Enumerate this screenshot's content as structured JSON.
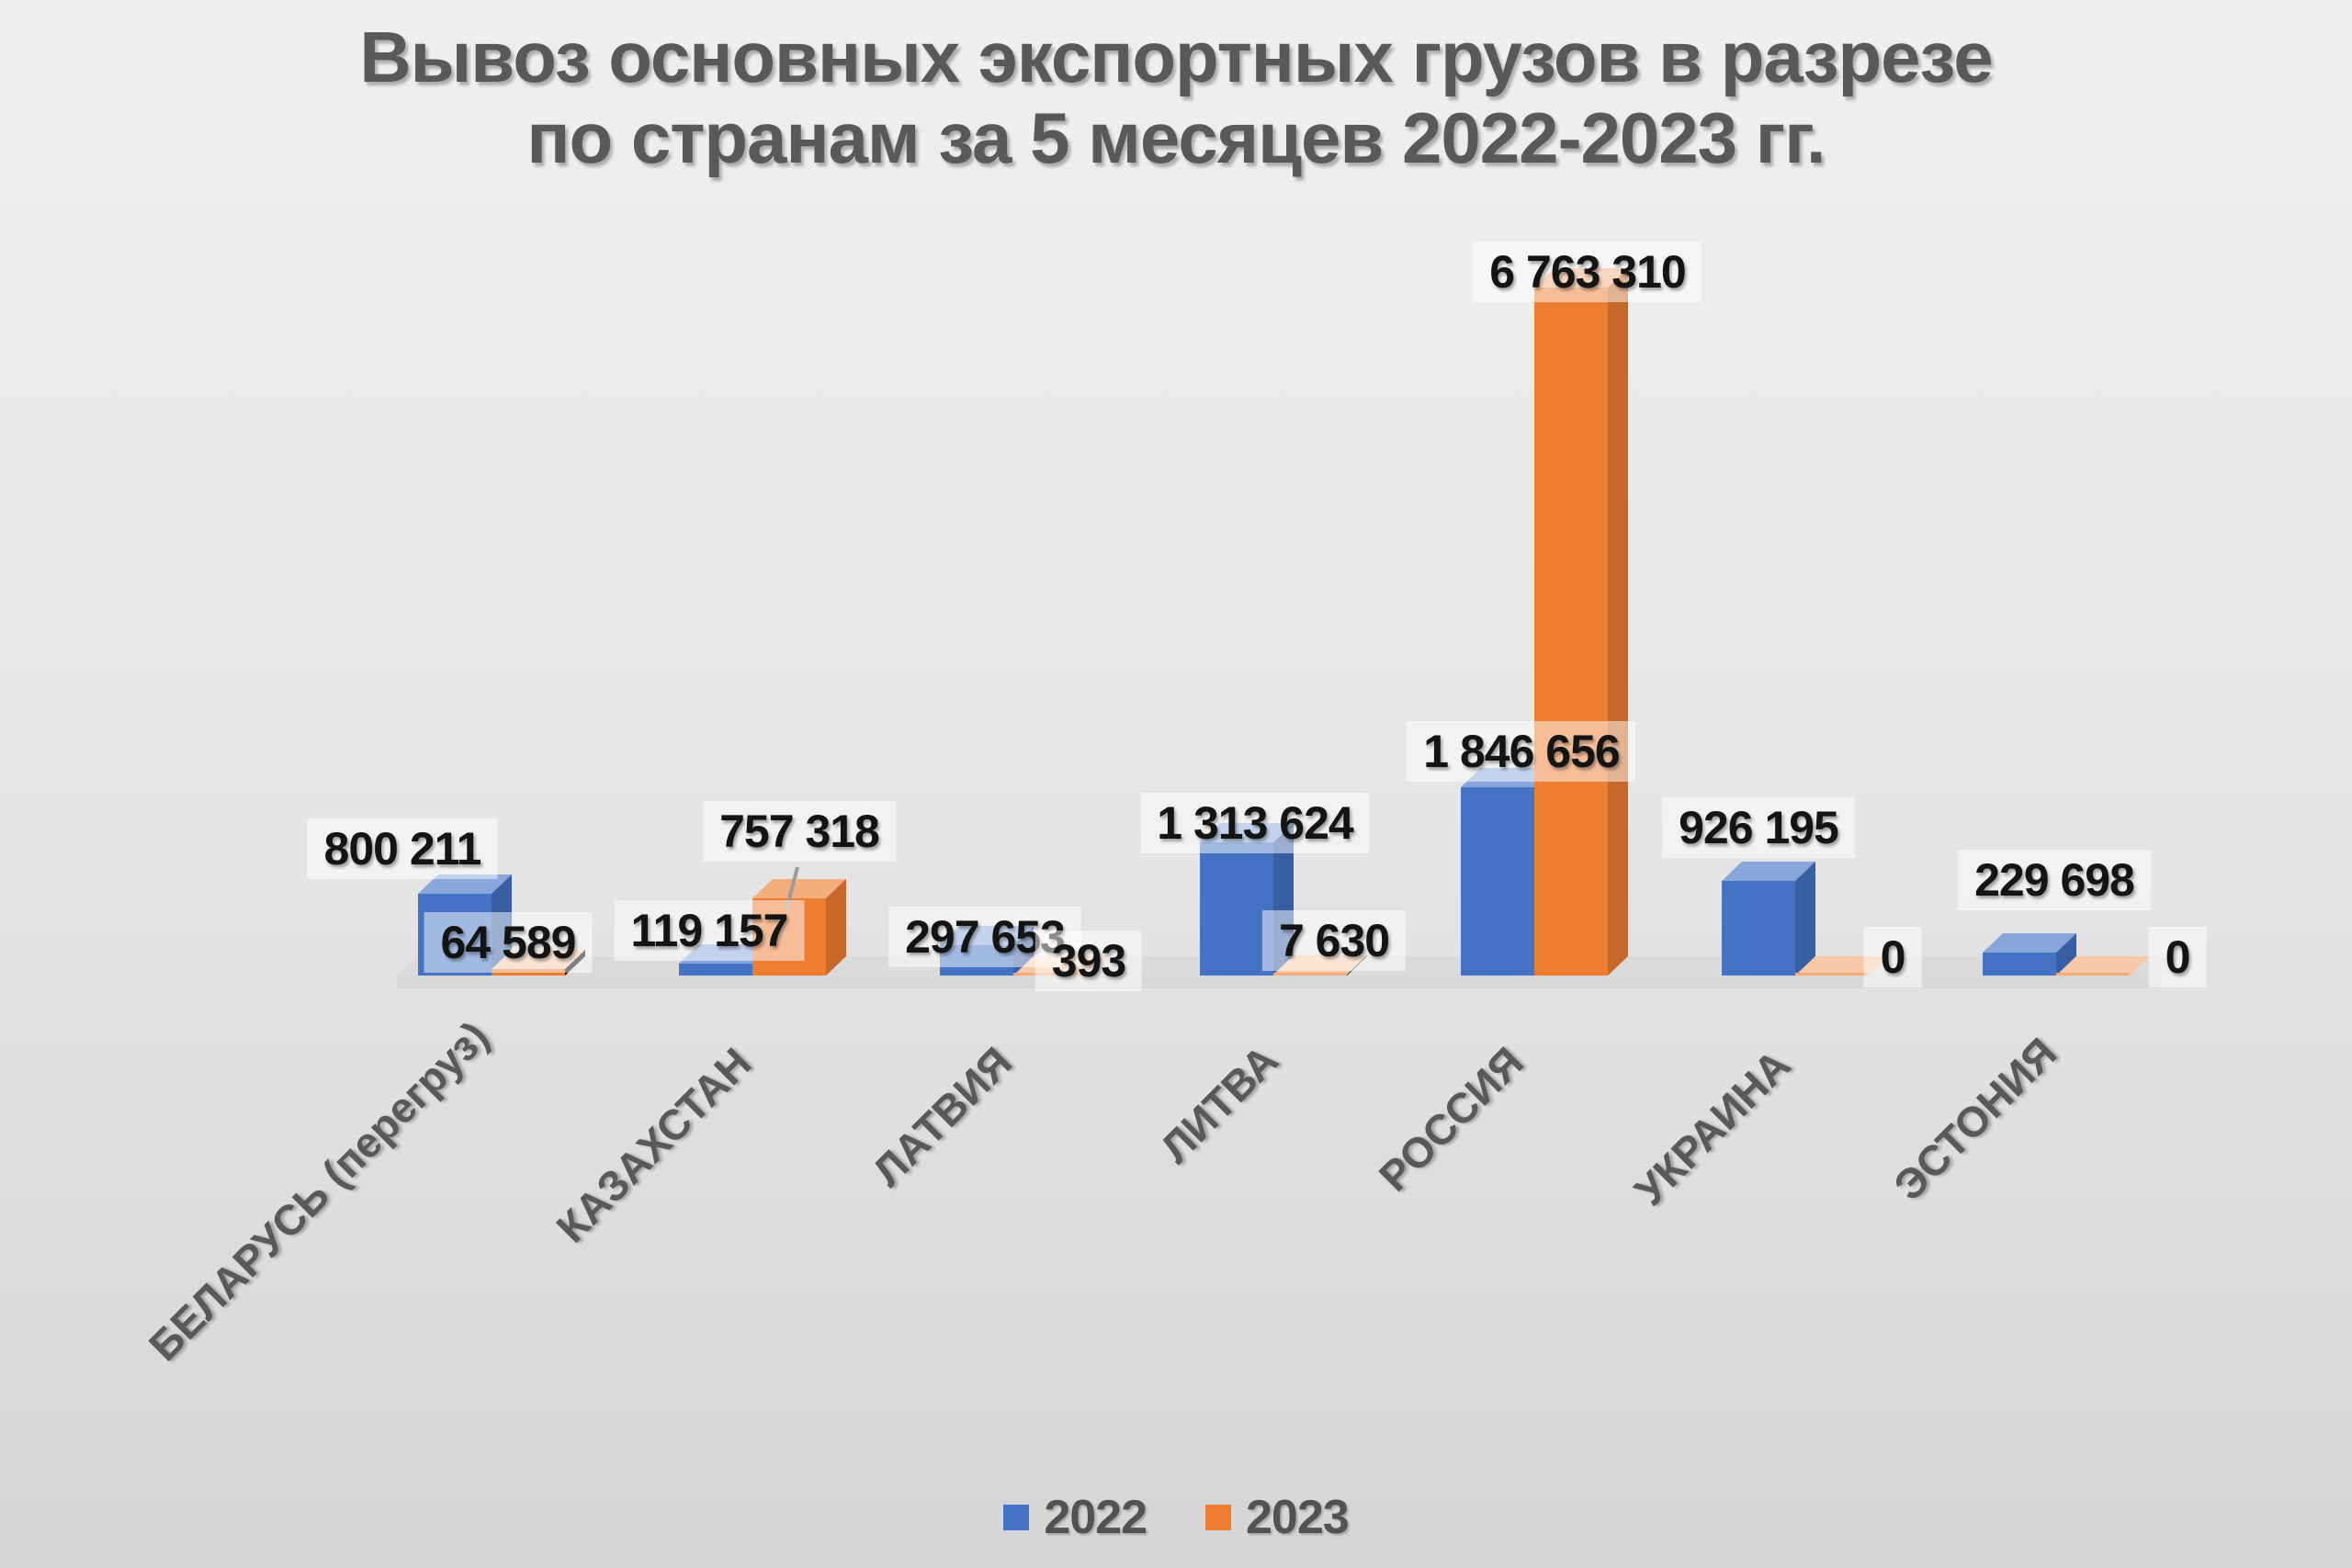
{
  "title": {
    "line1": "Вывоз основных экспортных грузов в разрезе",
    "line2": "по странам за 5 месяцев 2022-2023 гг."
  },
  "colors": {
    "series_2022": "#4472C4",
    "series_2023": "#ED7D31",
    "title_text": "#58595b",
    "value_label_text": "#141414",
    "category_label_text": "#595959",
    "background": "#e5e5e5"
  },
  "legend": {
    "position": "bottom",
    "items": [
      {
        "label": "2022",
        "color": "#4472C4"
      },
      {
        "label": "2023",
        "color": "#ED7D31"
      }
    ]
  },
  "chart_data": {
    "type": "bar",
    "projection": "3d",
    "gridlines": false,
    "value_axis": "hidden",
    "legend_position": "bottom",
    "categories": [
      "БЕЛАРУСЬ (перегруз)",
      "КАЗАХСТАН",
      "ЛАТВИЯ",
      "ЛИТВА",
      "РОССИЯ",
      "УКРАИНА",
      "ЭСТОНИЯ"
    ],
    "series": [
      {
        "name": "2022",
        "color": "#4472C4",
        "values": [
          800211,
          119157,
          297653,
          1313624,
          1846656,
          926195,
          229698
        ],
        "labels": [
          "800 211",
          "119 157",
          "297 653",
          "1 313 624",
          "1 846 656",
          "926 195",
          "229 698"
        ]
      },
      {
        "name": "2023",
        "color": "#ED7D31",
        "values": [
          64589,
          757318,
          393,
          7630,
          6763310,
          0,
          0
        ],
        "labels": [
          "64 589",
          "757 318",
          "393",
          "7 630",
          "6 763 310",
          "0",
          "0"
        ]
      }
    ]
  }
}
